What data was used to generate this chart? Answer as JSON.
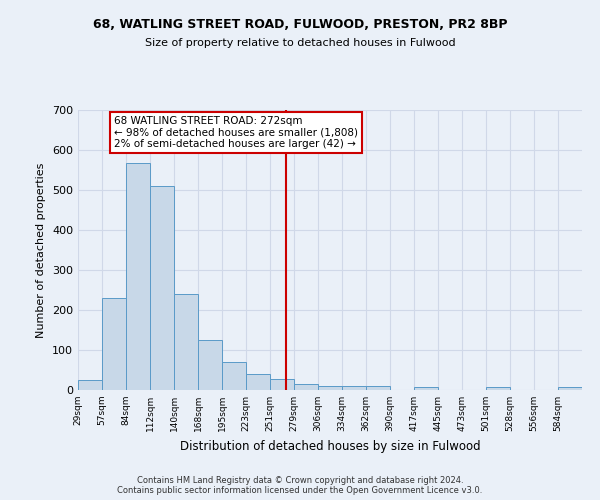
{
  "title_line1": "68, WATLING STREET ROAD, FULWOOD, PRESTON, PR2 8BP",
  "title_line2": "Size of property relative to detached houses in Fulwood",
  "xlabel": "Distribution of detached houses by size in Fulwood",
  "ylabel": "Number of detached properties",
  "footer_line1": "Contains HM Land Registry data © Crown copyright and database right 2024.",
  "footer_line2": "Contains public sector information licensed under the Open Government Licence v3.0.",
  "bin_labels": [
    "29sqm",
    "57sqm",
    "84sqm",
    "112sqm",
    "140sqm",
    "168sqm",
    "195sqm",
    "223sqm",
    "251sqm",
    "279sqm",
    "306sqm",
    "334sqm",
    "362sqm",
    "390sqm",
    "417sqm",
    "445sqm",
    "473sqm",
    "501sqm",
    "528sqm",
    "556sqm",
    "584sqm"
  ],
  "bar_heights": [
    26,
    230,
    568,
    510,
    240,
    124,
    71,
    41,
    27,
    15,
    10,
    10,
    10,
    0,
    8,
    0,
    0,
    8,
    0,
    0,
    7
  ],
  "bar_color": "#c8d8e8",
  "bar_edge_color": "#5a9ac8",
  "grid_color": "#d0d8e8",
  "property_line_color": "#cc0000",
  "annotation_text": "68 WATLING STREET ROAD: 272sqm\n← 98% of detached houses are smaller (1,808)\n2% of semi-detached houses are larger (42) →",
  "annotation_box_color": "#ffffff",
  "annotation_border_color": "#cc0000",
  "vline_x_index": 8.68,
  "ylim": [
    0,
    700
  ],
  "yticks": [
    0,
    100,
    200,
    300,
    400,
    500,
    600,
    700
  ],
  "background_color": "#eaf0f8"
}
